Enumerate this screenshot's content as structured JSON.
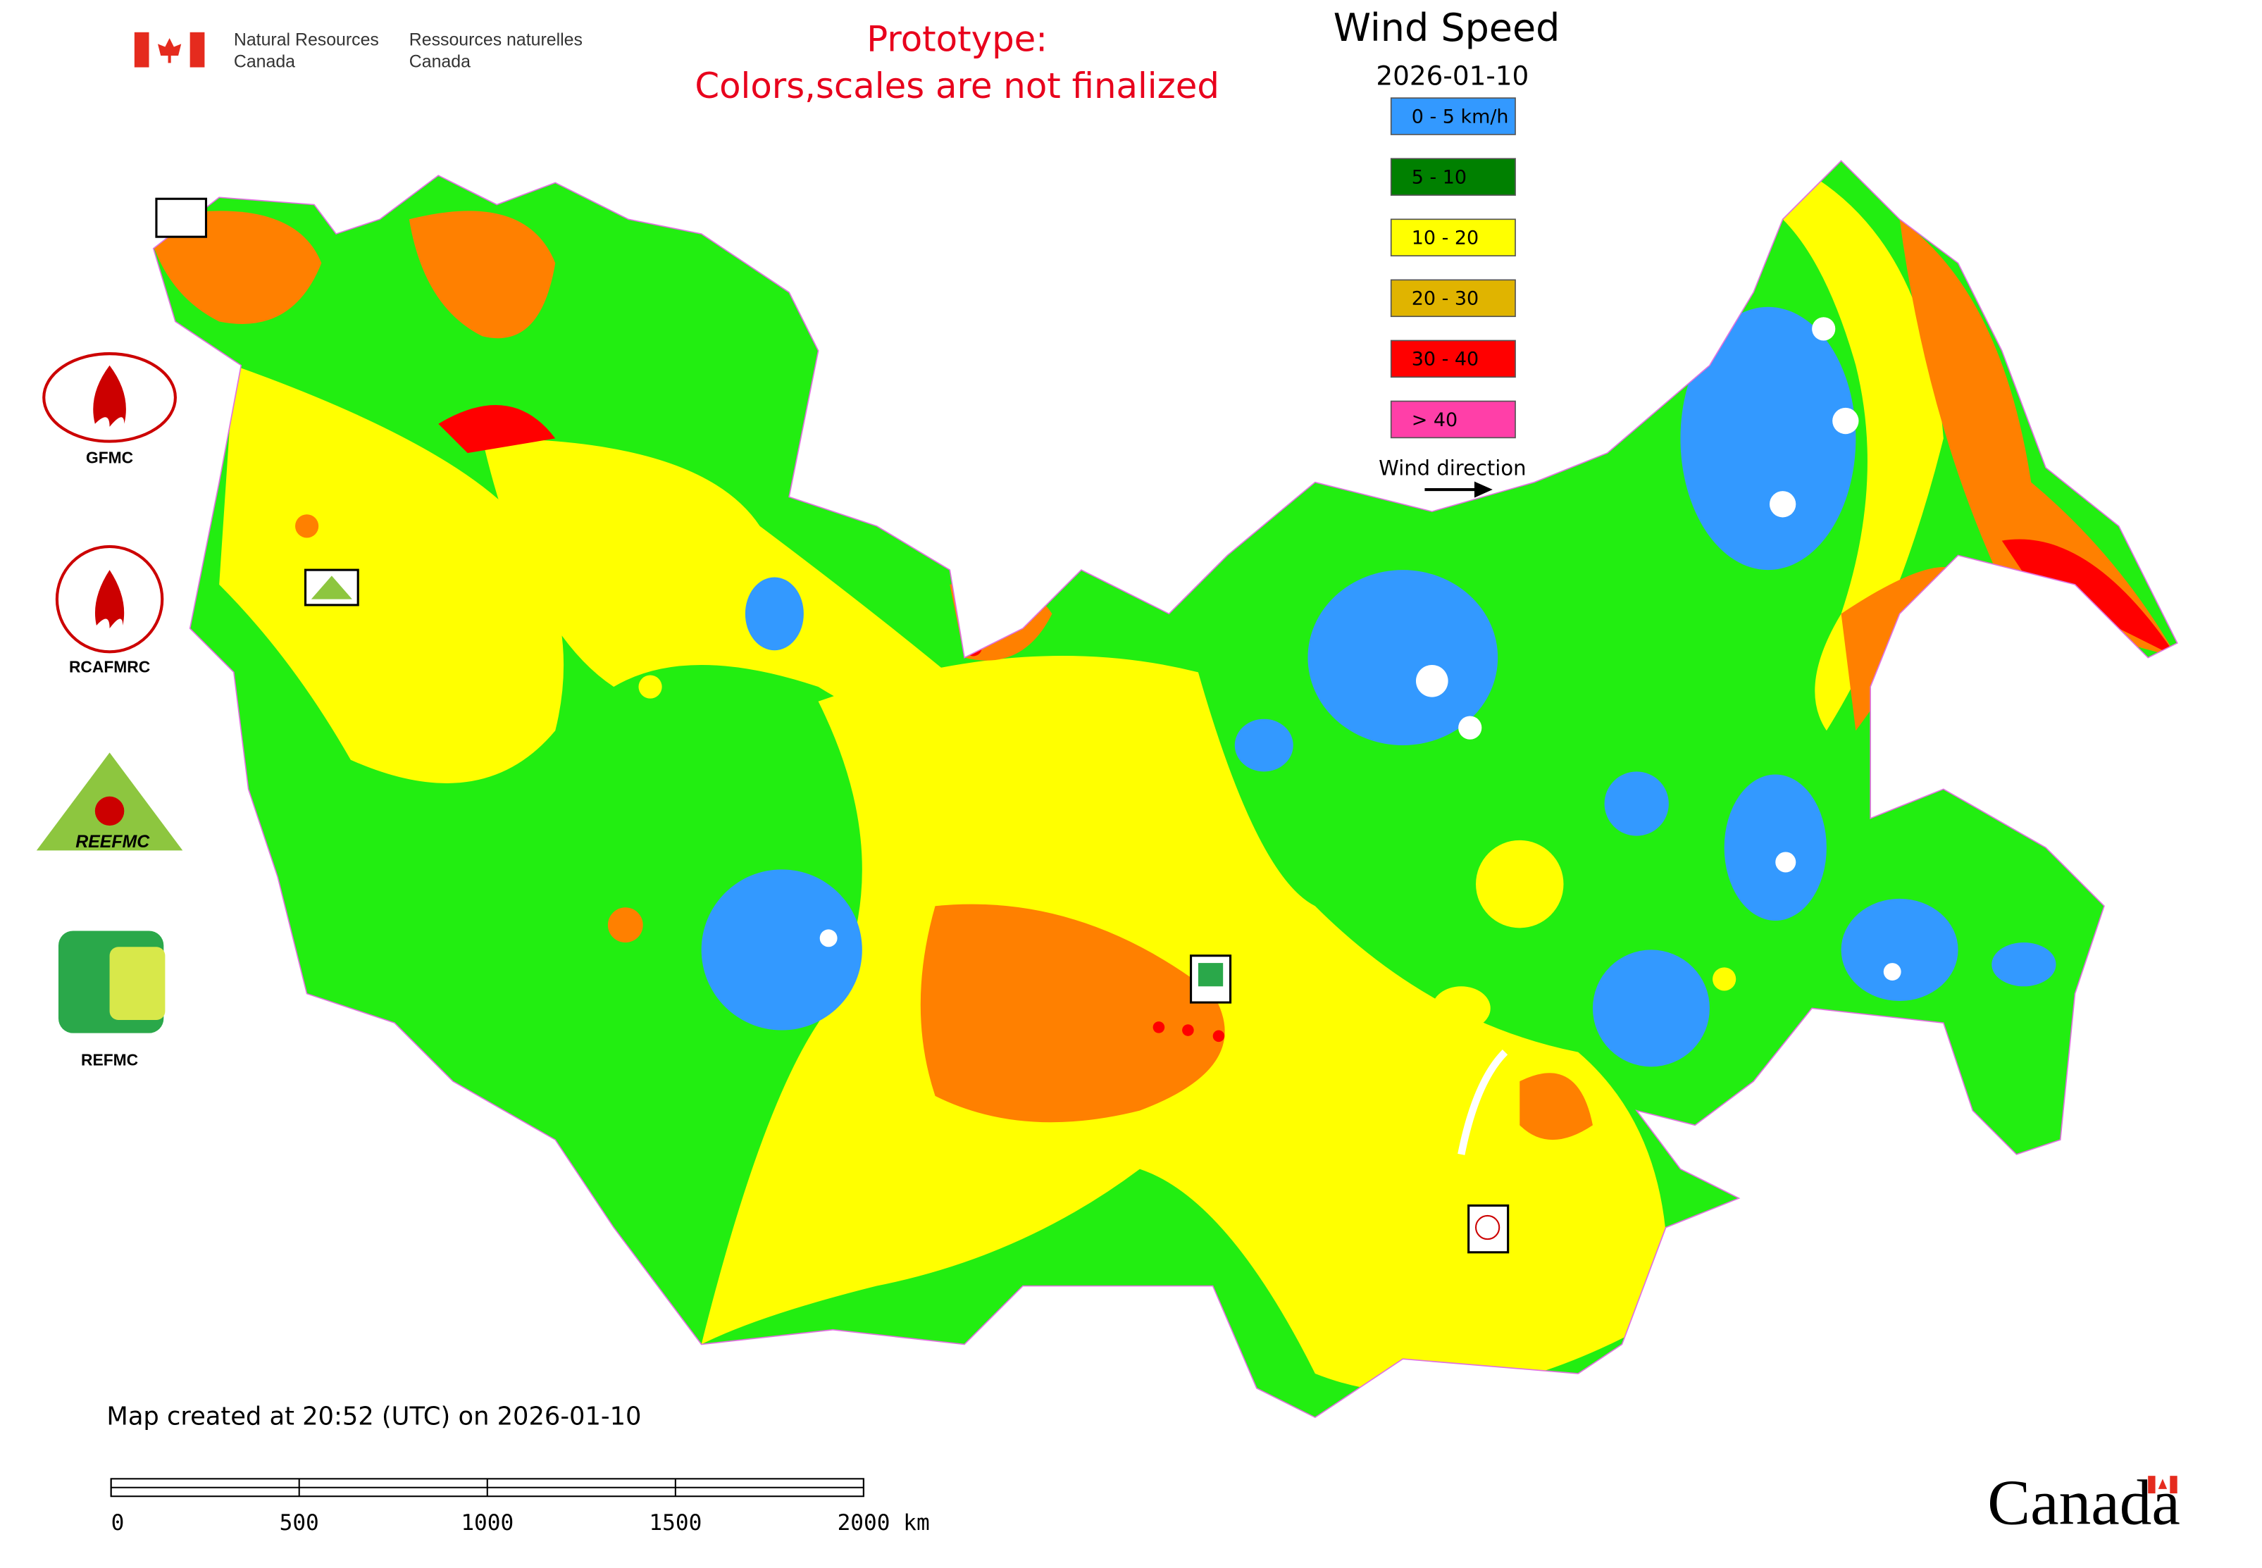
{
  "header": {
    "org_en": [
      "Natural Resources",
      "Canada"
    ],
    "org_fr": [
      "Ressources naturelles",
      "Canada"
    ],
    "notice": [
      "Prototype:",
      "Colors,scales are not finalized"
    ]
  },
  "legend": {
    "title": "Wind Speed",
    "date": "2026-01-10",
    "items": [
      {
        "label": "0 - 5 km/h",
        "color": "#3399ff"
      },
      {
        "label": "5 - 10",
        "color": "#008000"
      },
      {
        "label": "10 - 20",
        "color": "#ffff00"
      },
      {
        "label": "20 - 30",
        "color": "#e0b400"
      },
      {
        "label": "30 - 40",
        "color": "#ff0000"
      },
      {
        "label": "> 40",
        "color": "#ff3fa8"
      }
    ],
    "direction": "Wind direction"
  },
  "logos": [
    "GFMC",
    "RCAFMRC",
    "REEFMC",
    "REFMC"
  ],
  "footer": {
    "created": "Map created at 20:52 (UTC) on 2026-01-10",
    "scale_labels": [
      "0",
      "500",
      "1000",
      "1500",
      "2000 km"
    ],
    "wordmark": "Canada"
  }
}
